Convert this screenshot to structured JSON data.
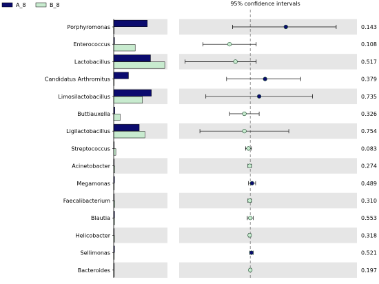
{
  "legend": {
    "items": [
      {
        "label": "A_8",
        "color": "#0b0b6e"
      },
      {
        "label": "B_8",
        "color": "#c8ebcf"
      }
    ]
  },
  "chart_data": {
    "type": "bar",
    "title": "95% confidence intervals",
    "categories": [
      "Porphyromonas",
      "Enterococcus",
      "Lactobacillus",
      "Candidatus Arthromitus",
      "Limosilactobacillus",
      "Buttiauxella",
      "Ligilactobacillus",
      "Streptococcus",
      "Acinetobacter",
      "Megamonas",
      "Faecalibacterium",
      "Blautia",
      "Helicobacter",
      "Sellimonas",
      "Bacteroides"
    ],
    "series": [
      {
        "name": "A_8",
        "color": "#0b0b6e",
        "values": [
          12.5,
          0.3,
          13.7,
          5.5,
          14.0,
          0.4,
          9.5,
          0.2,
          0.2,
          0.3,
          0.2,
          0.3,
          0.2,
          0.3,
          0.2
        ]
      },
      {
        "name": "B_8",
        "color": "#c8ebcf",
        "values": [
          0.1,
          8.0,
          19.0,
          0.1,
          10.7,
          2.4,
          11.6,
          0.8,
          0.4,
          0.2,
          0.4,
          0.3,
          0.3,
          0.2,
          0.2
        ]
      }
    ],
    "bar_xlim": [
      0,
      20
    ],
    "ci": [
      {
        "estimate": 6.0,
        "low": -3.0,
        "high": 14.5,
        "group": "A_8"
      },
      {
        "estimate": -3.5,
        "low": -8.0,
        "high": 1.0,
        "group": "B_8"
      },
      {
        "estimate": -2.5,
        "low": -11.0,
        "high": 1.0,
        "group": "B_8"
      },
      {
        "estimate": 2.5,
        "low": -4.0,
        "high": 8.5,
        "group": "A_8"
      },
      {
        "estimate": 1.5,
        "low": -7.5,
        "high": 10.5,
        "group": "A_8"
      },
      {
        "estimate": -1.0,
        "low": -3.5,
        "high": 1.5,
        "group": "B_8"
      },
      {
        "estimate": -1.0,
        "low": -8.5,
        "high": 6.5,
        "group": "B_8"
      },
      {
        "estimate": -0.3,
        "low": -0.8,
        "high": 0.2,
        "group": "B_8"
      },
      {
        "estimate": -0.1,
        "low": -0.4,
        "high": 0.2,
        "group": "B_8"
      },
      {
        "estimate": 0.3,
        "low": -0.3,
        "high": 0.9,
        "group": "A_8"
      },
      {
        "estimate": -0.1,
        "low": -0.4,
        "high": 0.2,
        "group": "B_8"
      },
      {
        "estimate": 0.0,
        "low": -0.5,
        "high": 0.5,
        "group": "B_8"
      },
      {
        "estimate": -0.1,
        "low": -0.3,
        "high": 0.1,
        "group": "B_8"
      },
      {
        "estimate": 0.2,
        "low": -0.1,
        "high": 0.5,
        "group": "A_8"
      },
      {
        "estimate": 0.0,
        "low": -0.2,
        "high": 0.2,
        "group": "B_8"
      }
    ],
    "ci_xlim": [
      -12,
      18
    ],
    "p_values": [
      "0.143",
      "0.108",
      "0.517",
      "0.379",
      "0.735",
      "0.326",
      "0.754",
      "0.083",
      "0.274",
      "0.489",
      "0.310",
      "0.553",
      "0.318",
      "0.521",
      "0.197"
    ],
    "stripe_color": "#e6e6e6",
    "legend_placement": "top-left"
  }
}
